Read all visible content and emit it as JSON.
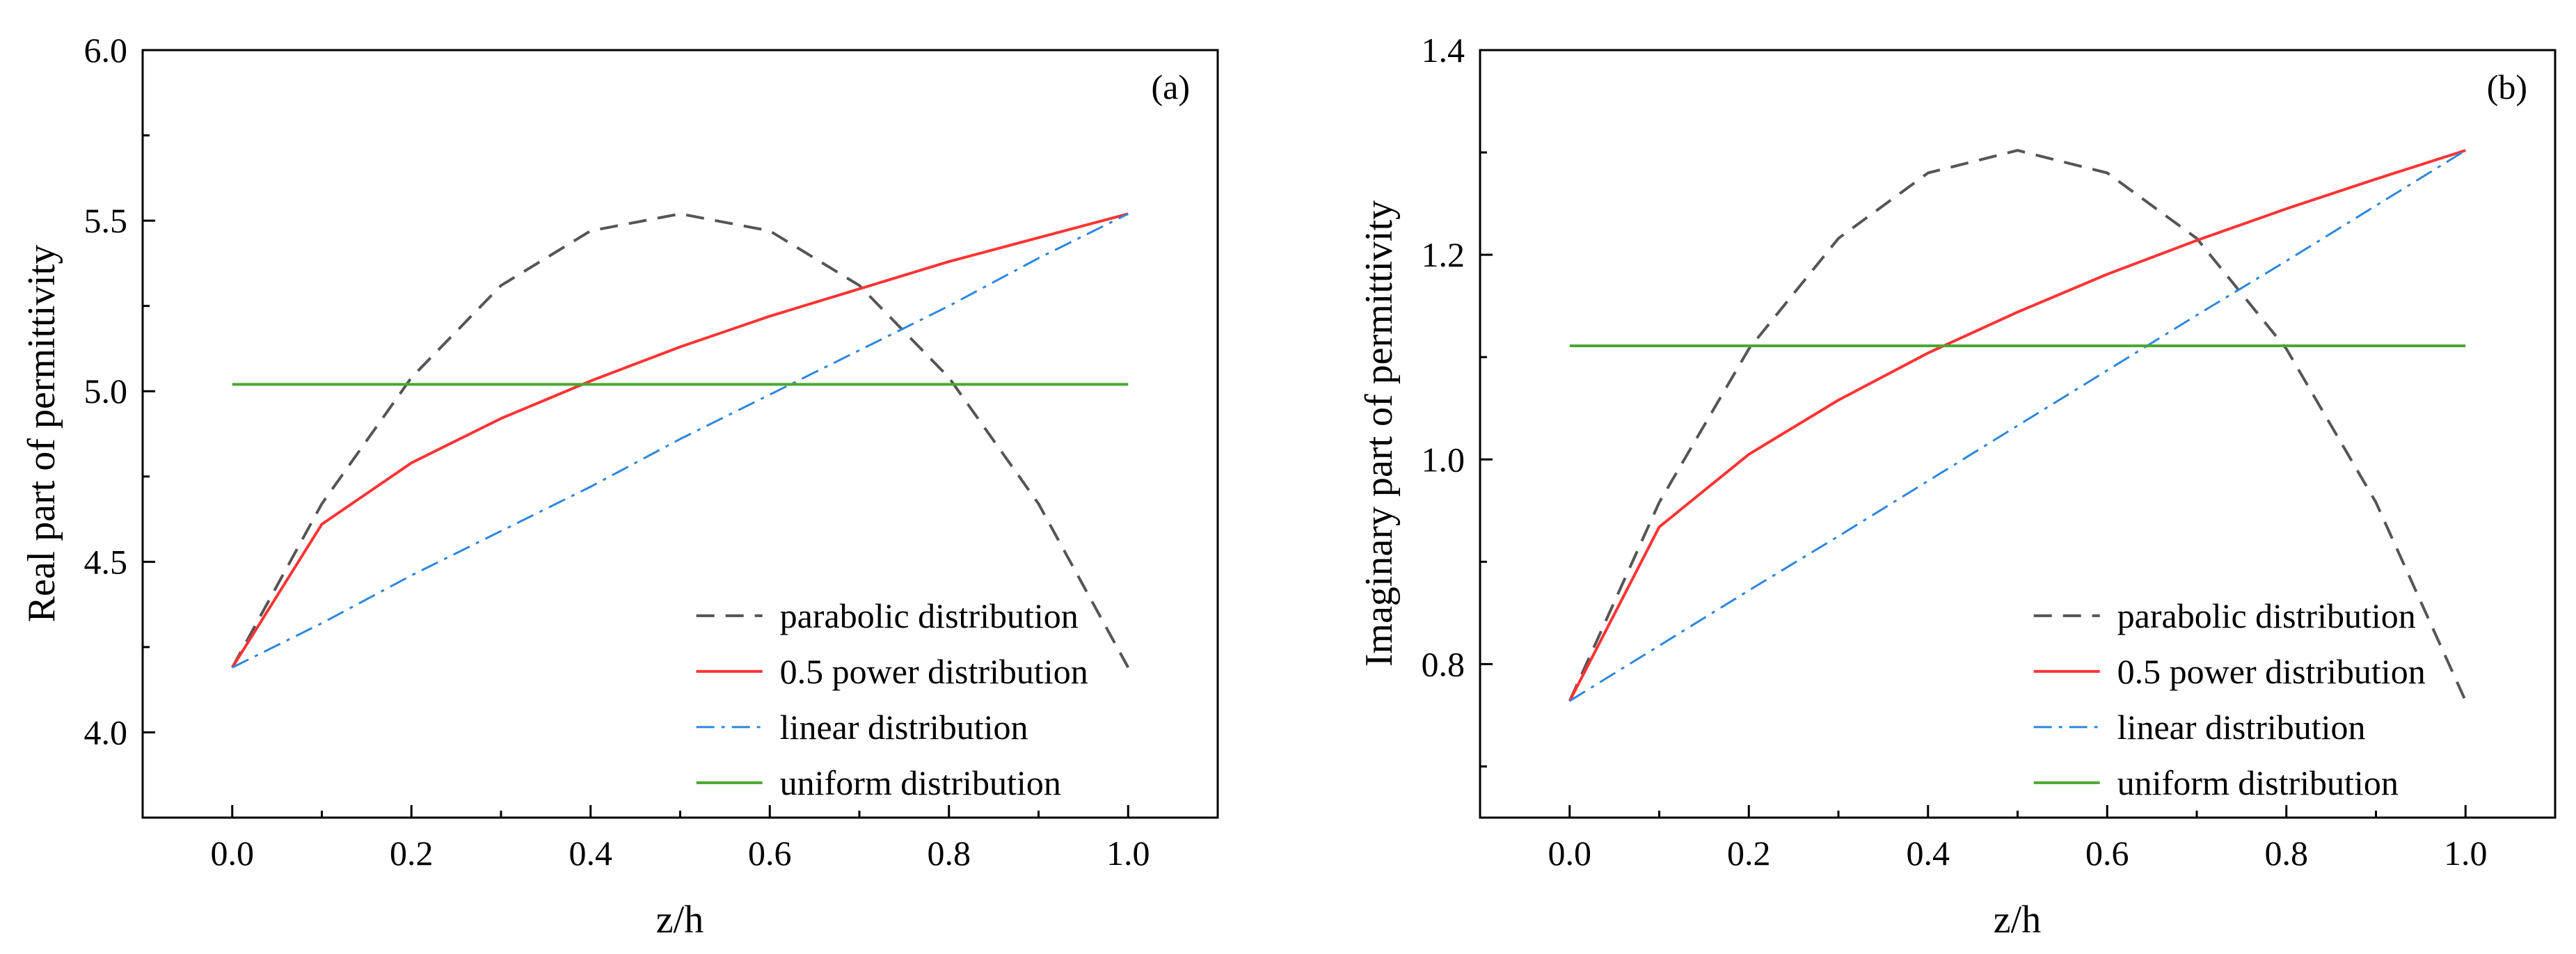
{
  "chart_data": [
    {
      "type": "line",
      "panel_label": "(a)",
      "xlabel": "z/h",
      "ylabel": "Real part of permittivity",
      "xlim": [
        -0.1,
        1.1
      ],
      "ylim": [
        3.75,
        6.0
      ],
      "xticks": [
        "0.0",
        "0.2",
        "0.4",
        "0.6",
        "0.8",
        "1.0"
      ],
      "yticks": [
        "4.0",
        "4.5",
        "5.0",
        "5.5",
        "6.0"
      ],
      "grid": false,
      "legend_position": "lower-right",
      "x": [
        0.0,
        0.1,
        0.2,
        0.3,
        0.4,
        0.5,
        0.6,
        0.7,
        0.8,
        0.9,
        1.0
      ],
      "series": [
        {
          "name": "parabolic distribution",
          "color": "#555555",
          "dash": "dash",
          "values": [
            4.19,
            4.67,
            5.04,
            5.31,
            5.47,
            5.52,
            5.47,
            5.31,
            5.04,
            4.67,
            4.19
          ]
        },
        {
          "name": "0.5 power distribution",
          "color": "#ff3333",
          "dash": "solid",
          "values": [
            4.19,
            4.61,
            4.79,
            4.92,
            5.03,
            5.13,
            5.22,
            5.3,
            5.38,
            5.45,
            5.52
          ]
        },
        {
          "name": "linear distribution",
          "color": "#2e86de",
          "dash": "dashdot",
          "values": [
            4.19,
            4.32,
            4.46,
            4.59,
            4.72,
            4.86,
            4.99,
            5.12,
            5.25,
            5.39,
            5.52
          ]
        },
        {
          "name": "uniform distribution",
          "color": "#4aa832",
          "dash": "solid",
          "values": [
            5.02,
            5.02,
            5.02,
            5.02,
            5.02,
            5.02,
            5.02,
            5.02,
            5.02,
            5.02,
            5.02
          ]
        }
      ]
    },
    {
      "type": "line",
      "panel_label": "(b)",
      "xlabel": "z/h",
      "ylabel": "Imaginary part of permittivity",
      "xlim": [
        -0.1,
        1.1
      ],
      "ylim": [
        0.65,
        1.4
      ],
      "xticks": [
        "0.0",
        "0.2",
        "0.4",
        "0.6",
        "0.8",
        "1.0"
      ],
      "yticks": [
        "0.8",
        "1.0",
        "1.2",
        "1.4"
      ],
      "grid": false,
      "legend_position": "lower-right",
      "x": [
        0.0,
        0.1,
        0.2,
        0.3,
        0.4,
        0.5,
        0.6,
        0.7,
        0.8,
        0.9,
        1.0
      ],
      "series": [
        {
          "name": "parabolic distribution",
          "color": "#555555",
          "dash": "dash",
          "values": [
            0.764,
            0.958,
            1.108,
            1.216,
            1.28,
            1.302,
            1.28,
            1.216,
            1.108,
            0.958,
            0.764
          ]
        },
        {
          "name": "0.5 power distribution",
          "color": "#ff3333",
          "dash": "solid",
          "values": [
            0.764,
            0.934,
            1.005,
            1.058,
            1.104,
            1.144,
            1.181,
            1.214,
            1.245,
            1.274,
            1.302
          ]
        },
        {
          "name": "linear distribution",
          "color": "#2e86de",
          "dash": "dashdot",
          "values": [
            0.764,
            0.818,
            0.872,
            0.925,
            0.979,
            1.033,
            1.087,
            1.141,
            1.194,
            1.248,
            1.302
          ]
        },
        {
          "name": "uniform distribution",
          "color": "#4aa832",
          "dash": "solid",
          "values": [
            1.111,
            1.111,
            1.111,
            1.111,
            1.111,
            1.111,
            1.111,
            1.111,
            1.111,
            1.111,
            1.111
          ]
        }
      ]
    }
  ]
}
